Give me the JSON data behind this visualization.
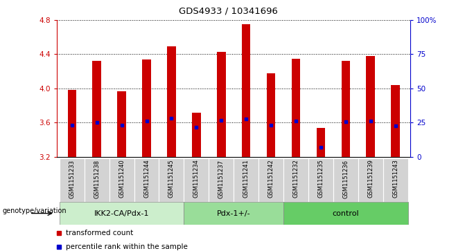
{
  "title": "GDS4933 / 10341696",
  "samples": [
    "GSM1151233",
    "GSM1151238",
    "GSM1151240",
    "GSM1151244",
    "GSM1151245",
    "GSM1151234",
    "GSM1151237",
    "GSM1151241",
    "GSM1151242",
    "GSM1151232",
    "GSM1151235",
    "GSM1151236",
    "GSM1151239",
    "GSM1151243"
  ],
  "bar_tops": [
    3.98,
    4.32,
    3.97,
    4.34,
    4.49,
    3.72,
    4.43,
    4.75,
    4.18,
    4.35,
    3.54,
    4.32,
    4.38,
    4.04
  ],
  "bar_bottom": 3.2,
  "blue_dots": [
    3.57,
    3.6,
    3.57,
    3.62,
    3.65,
    3.55,
    3.63,
    3.64,
    3.57,
    3.62,
    3.31,
    3.61,
    3.62,
    3.56
  ],
  "ylim_left": [
    3.2,
    4.8
  ],
  "ylim_right": [
    0,
    100
  ],
  "yticks_left": [
    3.2,
    3.6,
    4.0,
    4.4,
    4.8
  ],
  "yticks_right": [
    0,
    25,
    50,
    75,
    100
  ],
  "bar_color": "#cc0000",
  "dot_color": "#0000cc",
  "groups": [
    {
      "label": "IKK2-CA/Pdx-1",
      "start": 0,
      "end": 5
    },
    {
      "label": "Pdx-1+/-",
      "start": 5,
      "end": 9
    },
    {
      "label": "control",
      "start": 9,
      "end": 14
    }
  ],
  "group_colors": [
    "#cceecc",
    "#99dd99",
    "#66cc66"
  ],
  "legend_red": "transformed count",
  "legend_blue": "percentile rank within the sample",
  "genotype_label": "genotype/variation",
  "bar_color_leg": "#cc0000",
  "dot_color_leg": "#0000cc",
  "tick_color_left": "#cc0000",
  "tick_color_right": "#0000cc",
  "sample_bg": "#d3d3d3",
  "bar_width": 0.35
}
